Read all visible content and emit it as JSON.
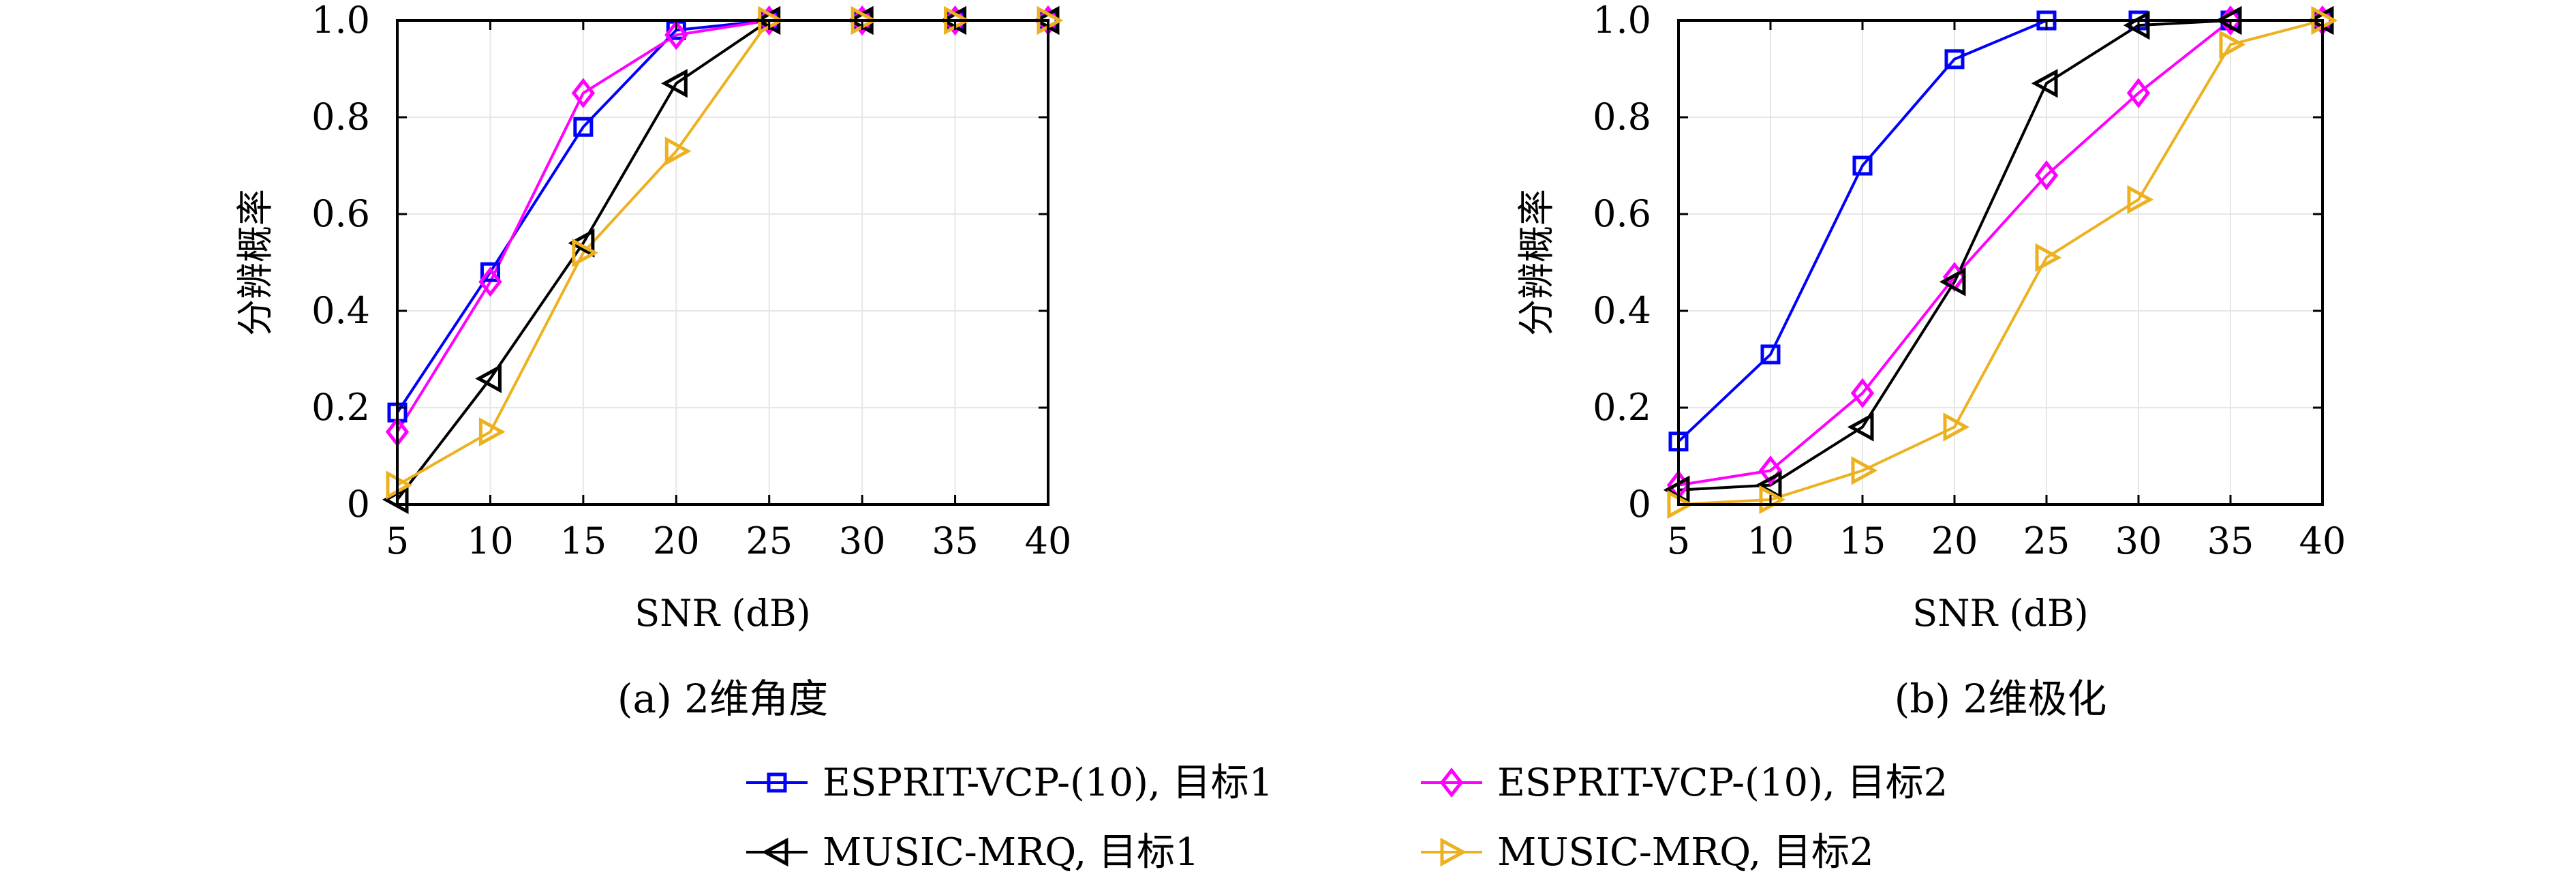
{
  "chart_data": [
    {
      "type": "line",
      "caption": "(a) 2维角度",
      "xlabel": "SNR (dB)",
      "ylabel": "分辨概率",
      "x": [
        5,
        10,
        15,
        20,
        25,
        30,
        35,
        40
      ],
      "xlim": [
        5,
        40
      ],
      "ylim": [
        0,
        1
      ],
      "xticks": [
        "5",
        "10",
        "15",
        "20",
        "25",
        "30",
        "35",
        "40"
      ],
      "yticks": [
        "0",
        "0.2",
        "0.4",
        "0.6",
        "0.8",
        "1.0"
      ],
      "grid": true,
      "series": [
        {
          "name": "ESPRIT-VCP-(10), 目标1",
          "color": "#0000ff",
          "marker": "square",
          "values": [
            0.19,
            0.48,
            0.78,
            0.98,
            1.0,
            1.0,
            1.0,
            1.0
          ]
        },
        {
          "name": "ESPRIT-VCP-(10), 目标2",
          "color": "#ff00ff",
          "marker": "diamond",
          "values": [
            0.15,
            0.46,
            0.85,
            0.97,
            1.0,
            1.0,
            1.0,
            1.0
          ]
        },
        {
          "name": "MUSIC-MRQ, 目标1",
          "color": "#000000",
          "marker": "tri-left",
          "values": [
            0.01,
            0.26,
            0.54,
            0.87,
            1.0,
            1.0,
            1.0,
            1.0
          ]
        },
        {
          "name": "MUSIC-MRQ, 目标2",
          "color": "#edb120",
          "marker": "tri-right",
          "values": [
            0.04,
            0.15,
            0.52,
            0.73,
            1.0,
            1.0,
            1.0,
            1.0
          ]
        }
      ]
    },
    {
      "type": "line",
      "caption": "(b) 2维极化",
      "xlabel": "SNR (dB)",
      "ylabel": "分辨概率",
      "x": [
        5,
        10,
        15,
        20,
        25,
        30,
        35,
        40
      ],
      "xlim": [
        5,
        40
      ],
      "ylim": [
        0,
        1
      ],
      "xticks": [
        "5",
        "10",
        "15",
        "20",
        "25",
        "30",
        "35",
        "40"
      ],
      "yticks": [
        "0",
        "0.2",
        "0.4",
        "0.6",
        "0.8",
        "1.0"
      ],
      "grid": true,
      "series": [
        {
          "name": "ESPRIT-VCP-(10), 目标1",
          "color": "#0000ff",
          "marker": "square",
          "values": [
            0.13,
            0.31,
            0.7,
            0.92,
            1.0,
            1.0,
            1.0,
            1.0
          ]
        },
        {
          "name": "ESPRIT-VCP-(10), 目标2",
          "color": "#ff00ff",
          "marker": "diamond",
          "values": [
            0.04,
            0.07,
            0.23,
            0.47,
            0.68,
            0.85,
            1.0,
            1.0
          ]
        },
        {
          "name": "MUSIC-MRQ, 目标1",
          "color": "#000000",
          "marker": "tri-left",
          "values": [
            0.03,
            0.04,
            0.16,
            0.46,
            0.87,
            0.99,
            1.0,
            1.0
          ]
        },
        {
          "name": "MUSIC-MRQ, 目标2",
          "color": "#edb120",
          "marker": "tri-right",
          "values": [
            0.0,
            0.01,
            0.07,
            0.16,
            0.51,
            0.63,
            0.95,
            1.0
          ]
        }
      ]
    }
  ],
  "legend": {
    "placement": "bottom-center",
    "items": [
      {
        "label": "ESPRIT-VCP-(10), 目标1",
        "color": "#0000ff",
        "marker": "square"
      },
      {
        "label": "ESPRIT-VCP-(10), 目标2",
        "color": "#ff00ff",
        "marker": "diamond"
      },
      {
        "label": "MUSIC-MRQ, 目标1",
        "color": "#000000",
        "marker": "tri-left"
      },
      {
        "label": "MUSIC-MRQ, 目标2",
        "color": "#edb120",
        "marker": "tri-right"
      }
    ]
  }
}
